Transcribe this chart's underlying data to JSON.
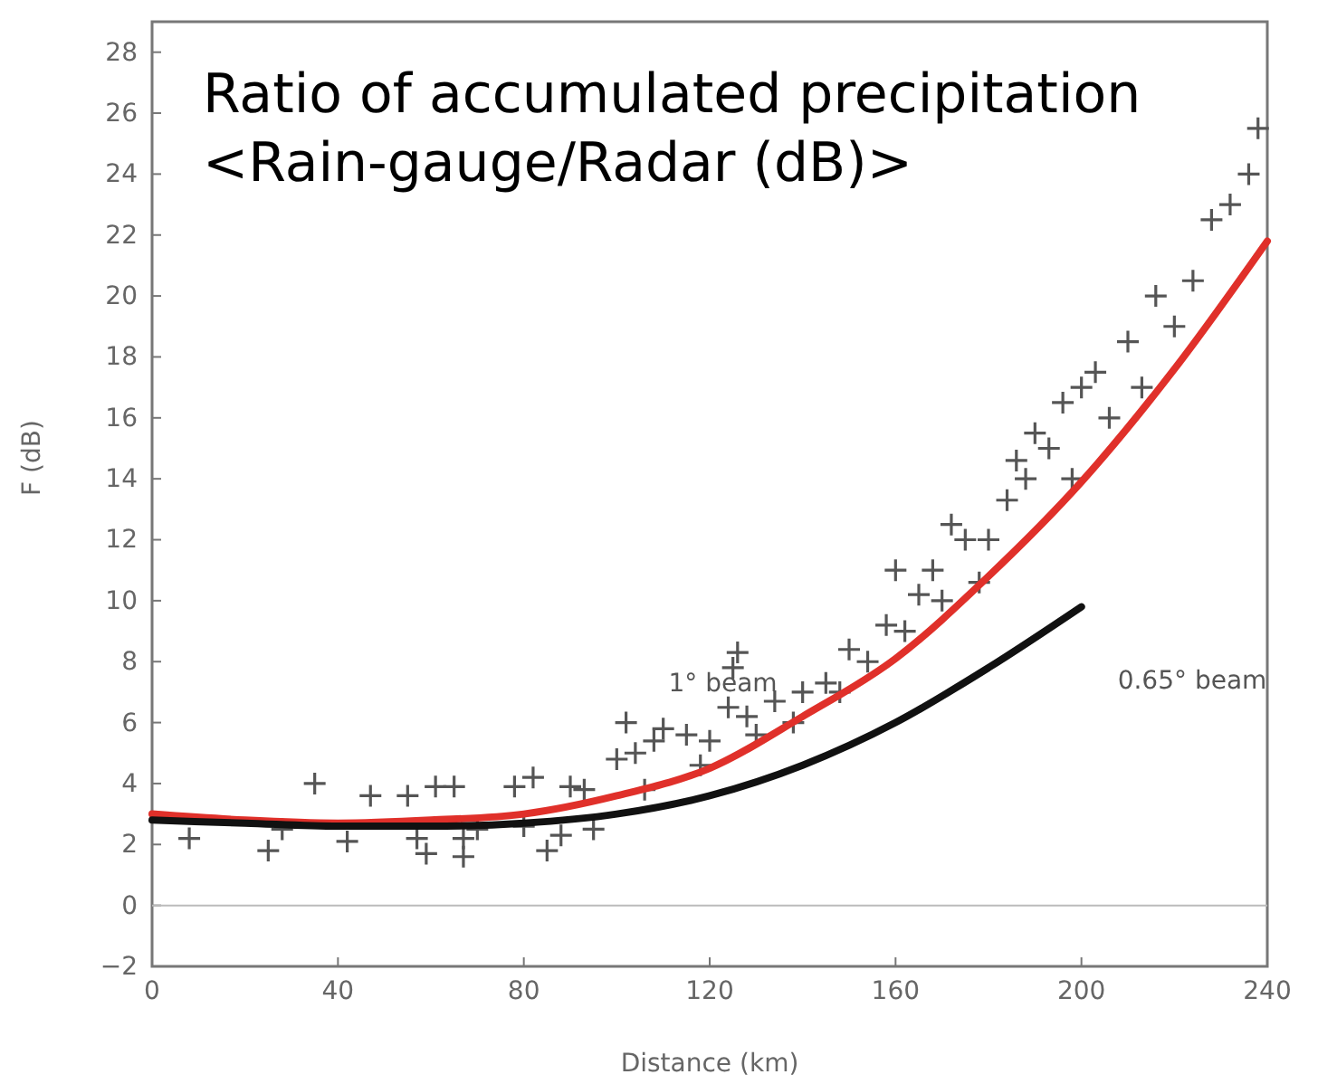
{
  "chart_data": {
    "type": "scatter",
    "title": "Ratio of accumulated precipitation",
    "subtitle": "<Rain-gauge/Radar (dB)>",
    "xlabel": "Distance (km)",
    "ylabel": "F (dB)",
    "xlim": [
      0,
      240
    ],
    "xticks": [
      0,
      40,
      80,
      120,
      160,
      200,
      240
    ],
    "ylim": [
      -2,
      29
    ],
    "yticks": [
      -2,
      0,
      2,
      4,
      6,
      8,
      10,
      12,
      14,
      16,
      18,
      20,
      22,
      24,
      26,
      28
    ],
    "grid": false,
    "legend": false,
    "line_style": "solid",
    "ref_lines": [
      {
        "axis": "y",
        "value": 0,
        "color": "#bbbbbb"
      }
    ],
    "series": [
      {
        "marker": "cross",
        "color": "#555555",
        "x": [
          8,
          25,
          28,
          35,
          42,
          47,
          55,
          57,
          59,
          61,
          65,
          67,
          67,
          70,
          78,
          80,
          82,
          85,
          88,
          90,
          93,
          95,
          100,
          102,
          104,
          106,
          108,
          110,
          115,
          118,
          120,
          124,
          125,
          126,
          128,
          130,
          134,
          138,
          140,
          145,
          148,
          150,
          154,
          158,
          160,
          162,
          165,
          168,
          170,
          172,
          175,
          178,
          180,
          184,
          186,
          188,
          190,
          193,
          196,
          198,
          200,
          203,
          206,
          210,
          213,
          216,
          220,
          224,
          228,
          232,
          236,
          238
        ],
        "values": [
          2.2,
          1.8,
          2.5,
          4.0,
          2.1,
          3.6,
          3.6,
          2.2,
          1.7,
          3.9,
          3.9,
          1.6,
          2.2,
          2.5,
          3.9,
          2.6,
          4.2,
          1.8,
          2.3,
          3.9,
          3.8,
          2.5,
          4.8,
          6.0,
          5.0,
          3.8,
          5.4,
          5.8,
          5.6,
          4.6,
          5.4,
          6.5,
          7.8,
          8.3,
          6.2,
          5.6,
          6.7,
          6.0,
          7.0,
          7.3,
          7.0,
          8.4,
          8.0,
          9.2,
          11.0,
          9.0,
          10.2,
          11.0,
          10.0,
          12.5,
          12.0,
          10.6,
          12.0,
          13.3,
          14.6,
          14.0,
          15.5,
          15.0,
          16.5,
          14.0,
          17.0,
          17.5,
          16.0,
          18.5,
          17.0,
          20.0,
          19.0,
          20.5,
          22.5,
          23.0,
          24.0,
          25.5
        ]
      },
      {
        "type": "line",
        "marker": "none",
        "name": "1° beam",
        "color": "#e0302a",
        "x": [
          0,
          20,
          40,
          60,
          80,
          100,
          120,
          140,
          160,
          180,
          200,
          220,
          240
        ],
        "values": [
          3.0,
          2.8,
          2.7,
          2.8,
          3.0,
          3.6,
          4.5,
          6.2,
          8.1,
          10.8,
          13.9,
          17.6,
          21.8
        ]
      },
      {
        "type": "line",
        "marker": "none",
        "name": "0.65° beam",
        "color": "#111111",
        "x": [
          0,
          20,
          40,
          60,
          80,
          100,
          120,
          140,
          160,
          180,
          200
        ],
        "values": [
          2.8,
          2.7,
          2.6,
          2.6,
          2.7,
          3.0,
          3.6,
          4.6,
          6.0,
          7.8,
          9.8
        ]
      }
    ]
  }
}
